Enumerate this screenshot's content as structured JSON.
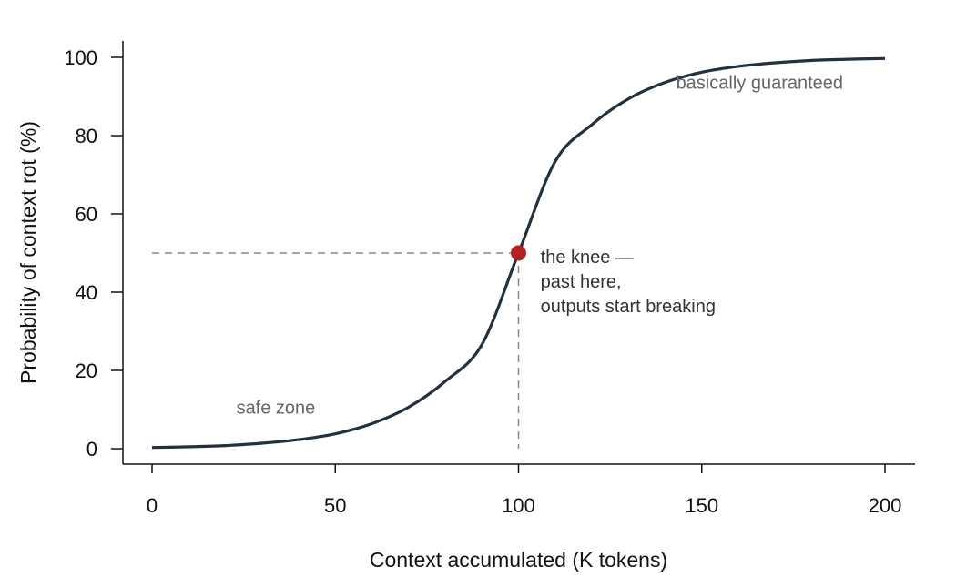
{
  "chart_data": {
    "type": "line",
    "xlabel": "Context accumulated (K tokens)",
    "ylabel": "Probability of context rot (%)",
    "xlim": [
      0,
      200
    ],
    "ylim": [
      0,
      100
    ],
    "xticks": [
      0,
      50,
      100,
      150,
      200
    ],
    "yticks": [
      0,
      20,
      40,
      60,
      80,
      100
    ],
    "grid": false,
    "series": [
      {
        "x": [
          0,
          10,
          20,
          30,
          40,
          50,
          60,
          70,
          80,
          90,
          100,
          110,
          120,
          130,
          140,
          150,
          160,
          170,
          180,
          190,
          200
        ],
        "y": [
          0.3,
          0.5,
          0.8,
          1.4,
          2.3,
          3.8,
          6.4,
          10.6,
          17.2,
          26.6,
          50.0,
          73.4,
          82.8,
          89.4,
          93.6,
          96.2,
          97.7,
          98.6,
          99.2,
          99.5,
          99.7
        ],
        "color": "#22303f"
      }
    ],
    "highlight_point": {
      "x": 100,
      "y": 50,
      "color": "#b22222"
    },
    "annotations": [
      {
        "lines": [
          "safe zone"
        ],
        "x": 23,
        "y": 9,
        "color": "#666666"
      },
      {
        "lines": [
          "basically guaranteed"
        ],
        "x": 143,
        "y": 92,
        "color": "#666666"
      },
      {
        "lines": [
          "the knee —",
          "past here,",
          "outputs start breaking"
        ],
        "x": 106,
        "y": 47.5,
        "color": "#333333"
      }
    ]
  }
}
